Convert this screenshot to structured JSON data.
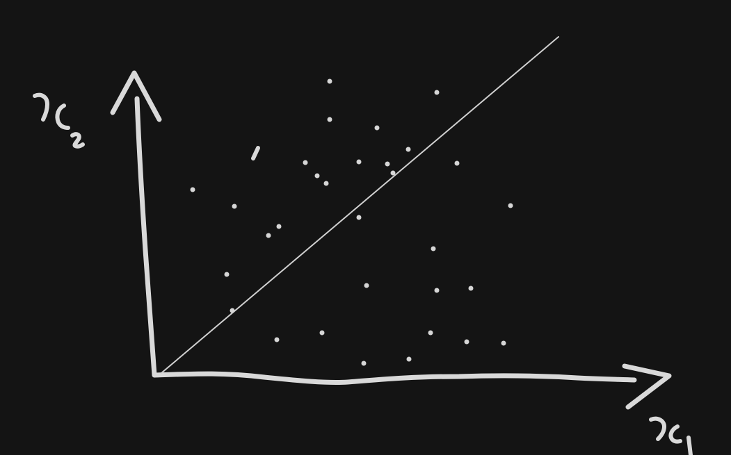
{
  "diagram": {
    "background": "#141414",
    "ink": "#d9d9d9",
    "x_axis_label": "x1",
    "y_axis_label": "x2",
    "points_count": 31
  }
}
